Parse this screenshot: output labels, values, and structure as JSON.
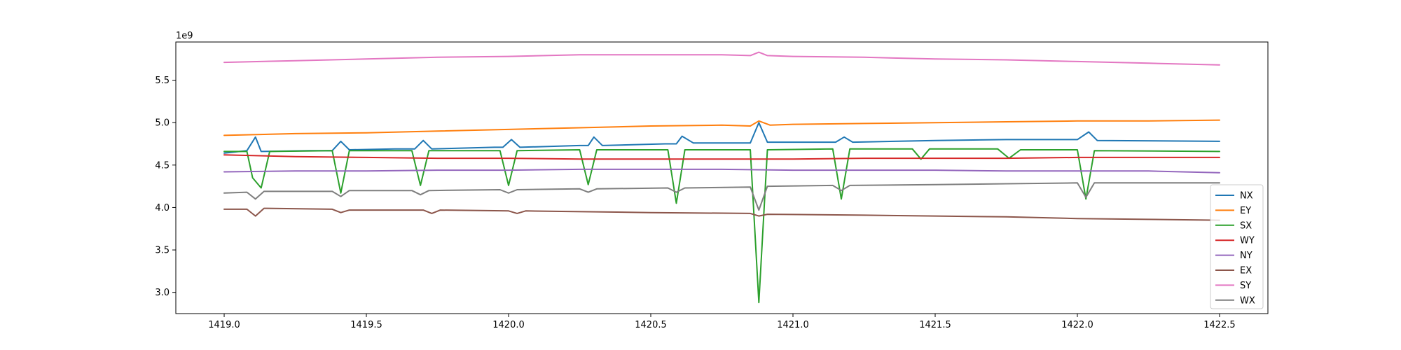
{
  "chart_data": {
    "type": "line",
    "title": "",
    "xlabel": "",
    "ylabel": "",
    "y_offset_text": "1e9",
    "xlim": [
      1418.83,
      1422.67
    ],
    "ylim": [
      2.75,
      5.95
    ],
    "x_ticks": [
      {
        "value": 1419.0,
        "label": "1419.0"
      },
      {
        "value": 1419.5,
        "label": "1419.5"
      },
      {
        "value": 1420.0,
        "label": "1420.0"
      },
      {
        "value": 1420.5,
        "label": "1420.5"
      },
      {
        "value": 1421.0,
        "label": "1421.0"
      },
      {
        "value": 1421.5,
        "label": "1421.5"
      },
      {
        "value": 1422.0,
        "label": "1422.0"
      },
      {
        "value": 1422.5,
        "label": "1422.5"
      }
    ],
    "y_ticks": [
      {
        "value": 3.0,
        "label": "3.0"
      },
      {
        "value": 3.5,
        "label": "3.5"
      },
      {
        "value": 4.0,
        "label": "4.0"
      },
      {
        "value": 4.5,
        "label": "4.5"
      },
      {
        "value": 5.0,
        "label": "5.0"
      },
      {
        "value": 5.5,
        "label": "5.5"
      }
    ],
    "grid": false,
    "legend_position": "lower-right",
    "series": [
      {
        "name": "NX",
        "color": "#1f77b4",
        "x": [
          1419.0,
          1419.08,
          1419.11,
          1419.13,
          1419.3,
          1419.38,
          1419.41,
          1419.44,
          1419.6,
          1419.67,
          1419.7,
          1419.73,
          1419.95,
          1419.98,
          1420.01,
          1420.04,
          1420.25,
          1420.28,
          1420.3,
          1420.33,
          1420.55,
          1420.59,
          1420.61,
          1420.65,
          1420.85,
          1420.88,
          1420.91,
          1421.15,
          1421.18,
          1421.21,
          1421.5,
          1421.75,
          1422.0,
          1422.04,
          1422.07,
          1422.5
        ],
        "y": [
          4.64,
          4.67,
          4.83,
          4.66,
          4.67,
          4.67,
          4.78,
          4.68,
          4.69,
          4.69,
          4.79,
          4.69,
          4.71,
          4.71,
          4.8,
          4.71,
          4.73,
          4.73,
          4.83,
          4.73,
          4.75,
          4.75,
          4.84,
          4.76,
          4.76,
          5.0,
          4.77,
          4.77,
          4.83,
          4.77,
          4.79,
          4.8,
          4.8,
          4.89,
          4.79,
          4.78
        ]
      },
      {
        "name": "EY",
        "color": "#ff7f0e",
        "x": [
          1419.0,
          1419.25,
          1419.5,
          1419.75,
          1420.0,
          1420.25,
          1420.5,
          1420.75,
          1420.85,
          1420.88,
          1420.92,
          1421.0,
          1421.25,
          1421.5,
          1421.75,
          1422.0,
          1422.25,
          1422.5
        ],
        "y": [
          4.85,
          4.87,
          4.88,
          4.9,
          4.92,
          4.94,
          4.96,
          4.97,
          4.96,
          5.02,
          4.97,
          4.98,
          4.99,
          5.0,
          5.01,
          5.02,
          5.02,
          5.03
        ]
      },
      {
        "name": "SX",
        "color": "#2ca02c",
        "x": [
          1419.0,
          1419.08,
          1419.1,
          1419.13,
          1419.16,
          1419.38,
          1419.41,
          1419.44,
          1419.66,
          1419.69,
          1419.72,
          1419.97,
          1420.0,
          1420.03,
          1420.25,
          1420.28,
          1420.31,
          1420.56,
          1420.59,
          1420.62,
          1420.85,
          1420.88,
          1420.91,
          1421.14,
          1421.17,
          1421.2,
          1421.42,
          1421.45,
          1421.48,
          1421.72,
          1421.76,
          1421.8,
          1422.0,
          1422.03,
          1422.06,
          1422.5
        ],
        "y": [
          4.66,
          4.66,
          4.35,
          4.23,
          4.66,
          4.67,
          4.17,
          4.67,
          4.67,
          4.26,
          4.67,
          4.67,
          4.26,
          4.67,
          4.68,
          4.27,
          4.68,
          4.68,
          4.05,
          4.68,
          4.68,
          2.88,
          4.68,
          4.69,
          4.1,
          4.69,
          4.69,
          4.57,
          4.69,
          4.69,
          4.58,
          4.68,
          4.68,
          4.1,
          4.67,
          4.66
        ]
      },
      {
        "name": "WY",
        "color": "#d62728",
        "x": [
          1419.0,
          1419.25,
          1419.5,
          1419.75,
          1420.0,
          1420.25,
          1420.5,
          1420.75,
          1421.0,
          1421.25,
          1421.5,
          1421.75,
          1422.0,
          1422.25,
          1422.5
        ],
        "y": [
          4.62,
          4.6,
          4.59,
          4.58,
          4.58,
          4.57,
          4.57,
          4.57,
          4.57,
          4.58,
          4.58,
          4.58,
          4.59,
          4.59,
          4.59
        ]
      },
      {
        "name": "NY",
        "color": "#9467bd",
        "x": [
          1419.0,
          1419.25,
          1419.5,
          1419.75,
          1420.0,
          1420.25,
          1420.5,
          1420.75,
          1421.0,
          1421.25,
          1421.5,
          1421.75,
          1422.0,
          1422.25,
          1422.5
        ],
        "y": [
          4.42,
          4.43,
          4.43,
          4.44,
          4.44,
          4.45,
          4.45,
          4.45,
          4.44,
          4.44,
          4.44,
          4.43,
          4.43,
          4.43,
          4.41
        ]
      },
      {
        "name": "EX",
        "color": "#8c564b",
        "x": [
          1419.0,
          1419.08,
          1419.11,
          1419.14,
          1419.38,
          1419.41,
          1419.44,
          1419.7,
          1419.73,
          1419.76,
          1420.0,
          1420.03,
          1420.06,
          1420.5,
          1420.85,
          1420.88,
          1420.91,
          1421.25,
          1421.5,
          1421.75,
          1422.0,
          1422.25,
          1422.5
        ],
        "y": [
          3.98,
          3.98,
          3.9,
          3.99,
          3.98,
          3.94,
          3.97,
          3.97,
          3.93,
          3.97,
          3.96,
          3.93,
          3.96,
          3.94,
          3.93,
          3.9,
          3.92,
          3.91,
          3.9,
          3.89,
          3.87,
          3.86,
          3.85
        ]
      },
      {
        "name": "SY",
        "color": "#e377c2",
        "x": [
          1419.0,
          1419.25,
          1419.5,
          1419.75,
          1420.0,
          1420.25,
          1420.5,
          1420.75,
          1420.85,
          1420.88,
          1420.91,
          1421.0,
          1421.25,
          1421.5,
          1421.75,
          1422.0,
          1422.25,
          1422.5
        ],
        "y": [
          5.71,
          5.73,
          5.75,
          5.77,
          5.78,
          5.8,
          5.8,
          5.8,
          5.79,
          5.83,
          5.79,
          5.78,
          5.77,
          5.75,
          5.74,
          5.72,
          5.7,
          5.68
        ]
      },
      {
        "name": "WX",
        "color": "#7f7f7f",
        "x": [
          1419.0,
          1419.08,
          1419.11,
          1419.14,
          1419.38,
          1419.41,
          1419.44,
          1419.66,
          1419.69,
          1419.72,
          1419.97,
          1420.0,
          1420.03,
          1420.25,
          1420.28,
          1420.31,
          1420.56,
          1420.59,
          1420.62,
          1420.85,
          1420.88,
          1420.91,
          1421.14,
          1421.17,
          1421.2,
          1421.5,
          1421.75,
          1422.0,
          1422.03,
          1422.06,
          1422.5
        ],
        "y": [
          4.17,
          4.18,
          4.1,
          4.19,
          4.19,
          4.13,
          4.2,
          4.2,
          4.15,
          4.2,
          4.21,
          4.17,
          4.21,
          4.22,
          4.18,
          4.22,
          4.23,
          4.18,
          4.23,
          4.24,
          3.97,
          4.25,
          4.26,
          4.2,
          4.26,
          4.27,
          4.28,
          4.29,
          4.12,
          4.29,
          4.29
        ]
      }
    ]
  }
}
